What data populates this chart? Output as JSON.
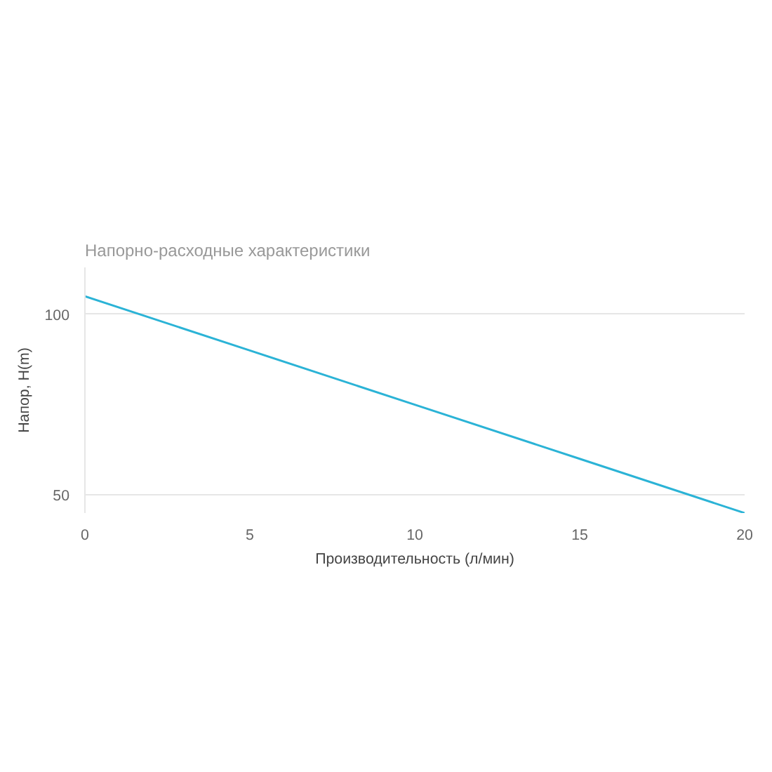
{
  "chart_data": {
    "type": "line",
    "title": "Напорно-расходные характеристики",
    "xlabel": "Производительность (л/мин)",
    "ylabel": "Напор, H(m)",
    "x": [
      0,
      5,
      10,
      15,
      20
    ],
    "series": [
      {
        "color": "#2bb3d6",
        "values": [
          105,
          90,
          75,
          60,
          45
        ]
      }
    ],
    "xlim": [
      0,
      20
    ],
    "ylim": [
      45,
      113
    ],
    "xticks": [
      0,
      5,
      10,
      15,
      20
    ],
    "yticks": [
      50,
      100
    ],
    "grid": "y",
    "marker": "none",
    "line_style": "solid"
  }
}
